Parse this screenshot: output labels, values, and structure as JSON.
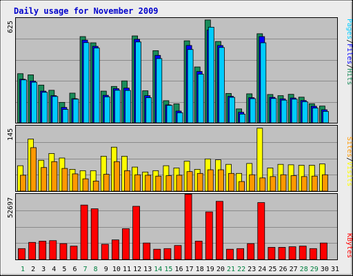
{
  "title": "Daily usage for November 2009",
  "colors": {
    "background": "#ececec",
    "plot": "#c0c0c0",
    "title": "#0000cc",
    "pages": "#00ccff",
    "files": "#0000ff",
    "hits": "#1a8c5a",
    "visits": "#ffff00",
    "sites": "#ff9900",
    "kbytes": "#ff0000",
    "weekend_label": "#008040",
    "weekday_label": "#000000"
  },
  "chart_data": [
    {
      "type": "bar",
      "panel": "hits-files-pages",
      "y_label": "625",
      "ylim": [
        0,
        625
      ],
      "legend": [
        "Pages",
        "Files",
        "Hits"
      ],
      "categories": [
        "1",
        "2",
        "3",
        "4",
        "5",
        "6",
        "7",
        "8",
        "9",
        "10",
        "11",
        "12",
        "13",
        "14",
        "15",
        "16",
        "17",
        "18",
        "19",
        "20",
        "21",
        "22",
        "23",
        "24",
        "25",
        "26",
        "27",
        "28",
        "29",
        "30",
        "31"
      ],
      "series": [
        {
          "name": "Hits",
          "values": [
            295,
            288,
            227,
            196,
            124,
            179,
            516,
            479,
            191,
            219,
            252,
            520,
            193,
            432,
            134,
            115,
            491,
            335,
            615,
            487,
            177,
            85,
            175,
            533,
            171,
            164,
            172,
            155,
            116,
            102,
            0
          ]
        },
        {
          "name": "Files",
          "values": [
            262,
            251,
            191,
            164,
            94,
            146,
            495,
            458,
            166,
            206,
            209,
            500,
            164,
            404,
            109,
            72,
            463,
            308,
            555,
            463,
            160,
            65,
            152,
            516,
            154,
            145,
            150,
            135,
            101,
            80,
            0
          ]
        },
        {
          "name": "Pages",
          "values": [
            258,
            244,
            184,
            159,
            82,
            143,
            480,
            448,
            157,
            196,
            195,
            484,
            152,
            385,
            106,
            62,
            439,
            292,
            572,
            451,
            154,
            54,
            146,
            479,
            147,
            137,
            143,
            128,
            90,
            70,
            0
          ]
        }
      ]
    },
    {
      "type": "bar",
      "panel": "visits-sites",
      "y_label": "145",
      "ylim": [
        0,
        145
      ],
      "legend": [
        "Sites",
        "Visits"
      ],
      "categories": [
        "1",
        "2",
        "3",
        "4",
        "5",
        "6",
        "7",
        "8",
        "9",
        "10",
        "11",
        "12",
        "13",
        "14",
        "15",
        "16",
        "17",
        "18",
        "19",
        "20",
        "21",
        "22",
        "23",
        "24",
        "25",
        "26",
        "27",
        "28",
        "29",
        "30",
        "31"
      ],
      "series": [
        {
          "name": "Visits",
          "values": [
            57,
            116,
            69,
            84,
            74,
            49,
            46,
            46,
            78,
            98,
            78,
            54,
            43,
            46,
            57,
            52,
            67,
            49,
            72,
            70,
            60,
            40,
            62,
            140,
            52,
            60,
            59,
            58,
            58,
            61,
            0
          ]
        },
        {
          "name": "Sites",
          "values": [
            36,
            97,
            53,
            66,
            51,
            39,
            28,
            23,
            38,
            66,
            46,
            37,
            36,
            34,
            35,
            36,
            44,
            40,
            48,
            48,
            40,
            22,
            37,
            30,
            33,
            37,
            35,
            33,
            34,
            37,
            0
          ]
        }
      ]
    },
    {
      "type": "bar",
      "panel": "kbytes",
      "y_label": "52697",
      "ylim": [
        0,
        52697
      ],
      "legend": [
        "KBytes"
      ],
      "categories": [
        "1",
        "2",
        "3",
        "4",
        "5",
        "6",
        "7",
        "8",
        "9",
        "10",
        "11",
        "12",
        "13",
        "14",
        "15",
        "16",
        "17",
        "18",
        "19",
        "20",
        "21",
        "22",
        "23",
        "24",
        "25",
        "26",
        "27",
        "28",
        "29",
        "30",
        "31"
      ],
      "series": [
        {
          "name": "KBytes",
          "values": [
            9000,
            14000,
            15000,
            15400,
            13000,
            11000,
            44000,
            41000,
            12500,
            16000,
            25000,
            43000,
            13500,
            8500,
            9000,
            11500,
            52697,
            15000,
            38500,
            47000,
            8500,
            9000,
            13000,
            46000,
            10000,
            10000,
            10500,
            11000,
            9000,
            13500,
            0
          ]
        }
      ]
    }
  ],
  "days": [
    {
      "label": "1",
      "weekend": true
    },
    {
      "label": "2",
      "weekend": false
    },
    {
      "label": "3",
      "weekend": false
    },
    {
      "label": "4",
      "weekend": false
    },
    {
      "label": "5",
      "weekend": false
    },
    {
      "label": "6",
      "weekend": false
    },
    {
      "label": "7",
      "weekend": true
    },
    {
      "label": "8",
      "weekend": true
    },
    {
      "label": "9",
      "weekend": false
    },
    {
      "label": "10",
      "weekend": false
    },
    {
      "label": "11",
      "weekend": false
    },
    {
      "label": "12",
      "weekend": false
    },
    {
      "label": "13",
      "weekend": false
    },
    {
      "label": "14",
      "weekend": true
    },
    {
      "label": "15",
      "weekend": true
    },
    {
      "label": "16",
      "weekend": false
    },
    {
      "label": "17",
      "weekend": false
    },
    {
      "label": "18",
      "weekend": false
    },
    {
      "label": "19",
      "weekend": false
    },
    {
      "label": "20",
      "weekend": false
    },
    {
      "label": "21",
      "weekend": true
    },
    {
      "label": "22",
      "weekend": true
    },
    {
      "label": "23",
      "weekend": false
    },
    {
      "label": "24",
      "weekend": false
    },
    {
      "label": "25",
      "weekend": false
    },
    {
      "label": "26",
      "weekend": false
    },
    {
      "label": "27",
      "weekend": false
    },
    {
      "label": "28",
      "weekend": true
    },
    {
      "label": "29",
      "weekend": true
    },
    {
      "label": "30",
      "weekend": false
    },
    {
      "label": "31",
      "weekend": false
    }
  ],
  "legend_labels": {
    "top": [
      {
        "text": "Pages",
        "color": "#00ccff"
      },
      {
        "text": "Files",
        "color": "#0000ff"
      },
      {
        "text": "Hits",
        "color": "#1a8c5a"
      }
    ],
    "middle": [
      {
        "text": "Sites",
        "color": "#ff9900"
      },
      {
        "text": "Visits",
        "color": "#ffff00"
      }
    ],
    "bottom": [
      {
        "text": "KBytes",
        "color": "#ff0000"
      }
    ]
  }
}
